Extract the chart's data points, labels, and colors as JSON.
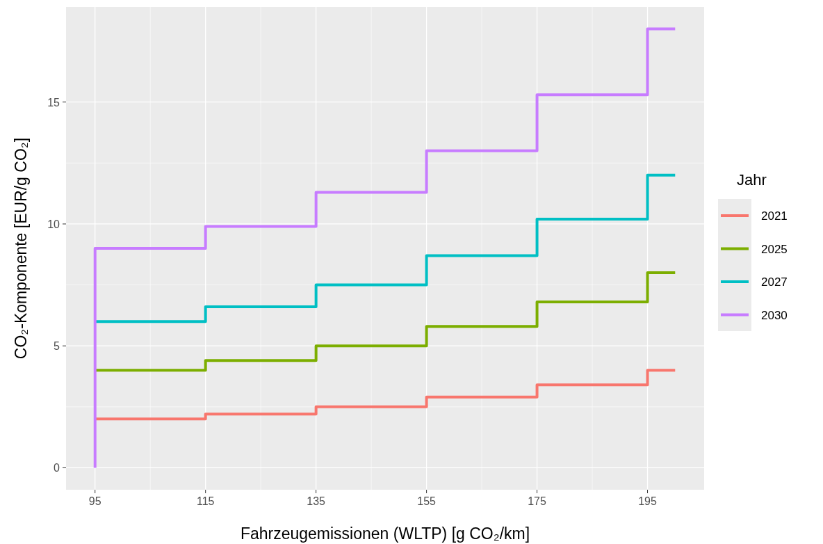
{
  "chart_data": {
    "type": "step",
    "xlabel": "Fahrzeugemissionen (WLTP) [g CO₂/km]",
    "ylabel": "CO₂-Komponente [EUR/g CO₂]",
    "legend_title": "Jahr",
    "xlim": [
      89.75,
      205.25
    ],
    "xticks": [
      95,
      115,
      135,
      155,
      175,
      195
    ],
    "ylim": [
      -0.9,
      18.9
    ],
    "yticks": [
      0,
      5,
      10,
      15
    ],
    "grid": true,
    "legend": "right",
    "series": [
      {
        "name": "2021",
        "color": "#f8766d",
        "x": [
          95,
          115,
          135,
          155,
          175,
          195,
          200
        ],
        "values": [
          2,
          2.2,
          2.5,
          2.9,
          3.4,
          4,
          4
        ]
      },
      {
        "name": "2025",
        "color": "#7cae00",
        "x": [
          95,
          115,
          135,
          155,
          175,
          195,
          200
        ],
        "values": [
          4,
          4.4,
          5,
          5.8,
          6.8,
          8,
          8
        ]
      },
      {
        "name": "2027",
        "color": "#00bfc4",
        "x": [
          95,
          115,
          135,
          155,
          175,
          195,
          200
        ],
        "values": [
          6,
          6.6,
          7.5,
          8.7,
          10.2,
          12,
          12
        ]
      },
      {
        "name": "2030",
        "color": "#c77cff",
        "x": [
          95,
          95,
          115,
          135,
          155,
          175,
          195,
          200
        ],
        "values": [
          0,
          9,
          9.9,
          11.3,
          13,
          15.3,
          18,
          18
        ]
      }
    ]
  }
}
